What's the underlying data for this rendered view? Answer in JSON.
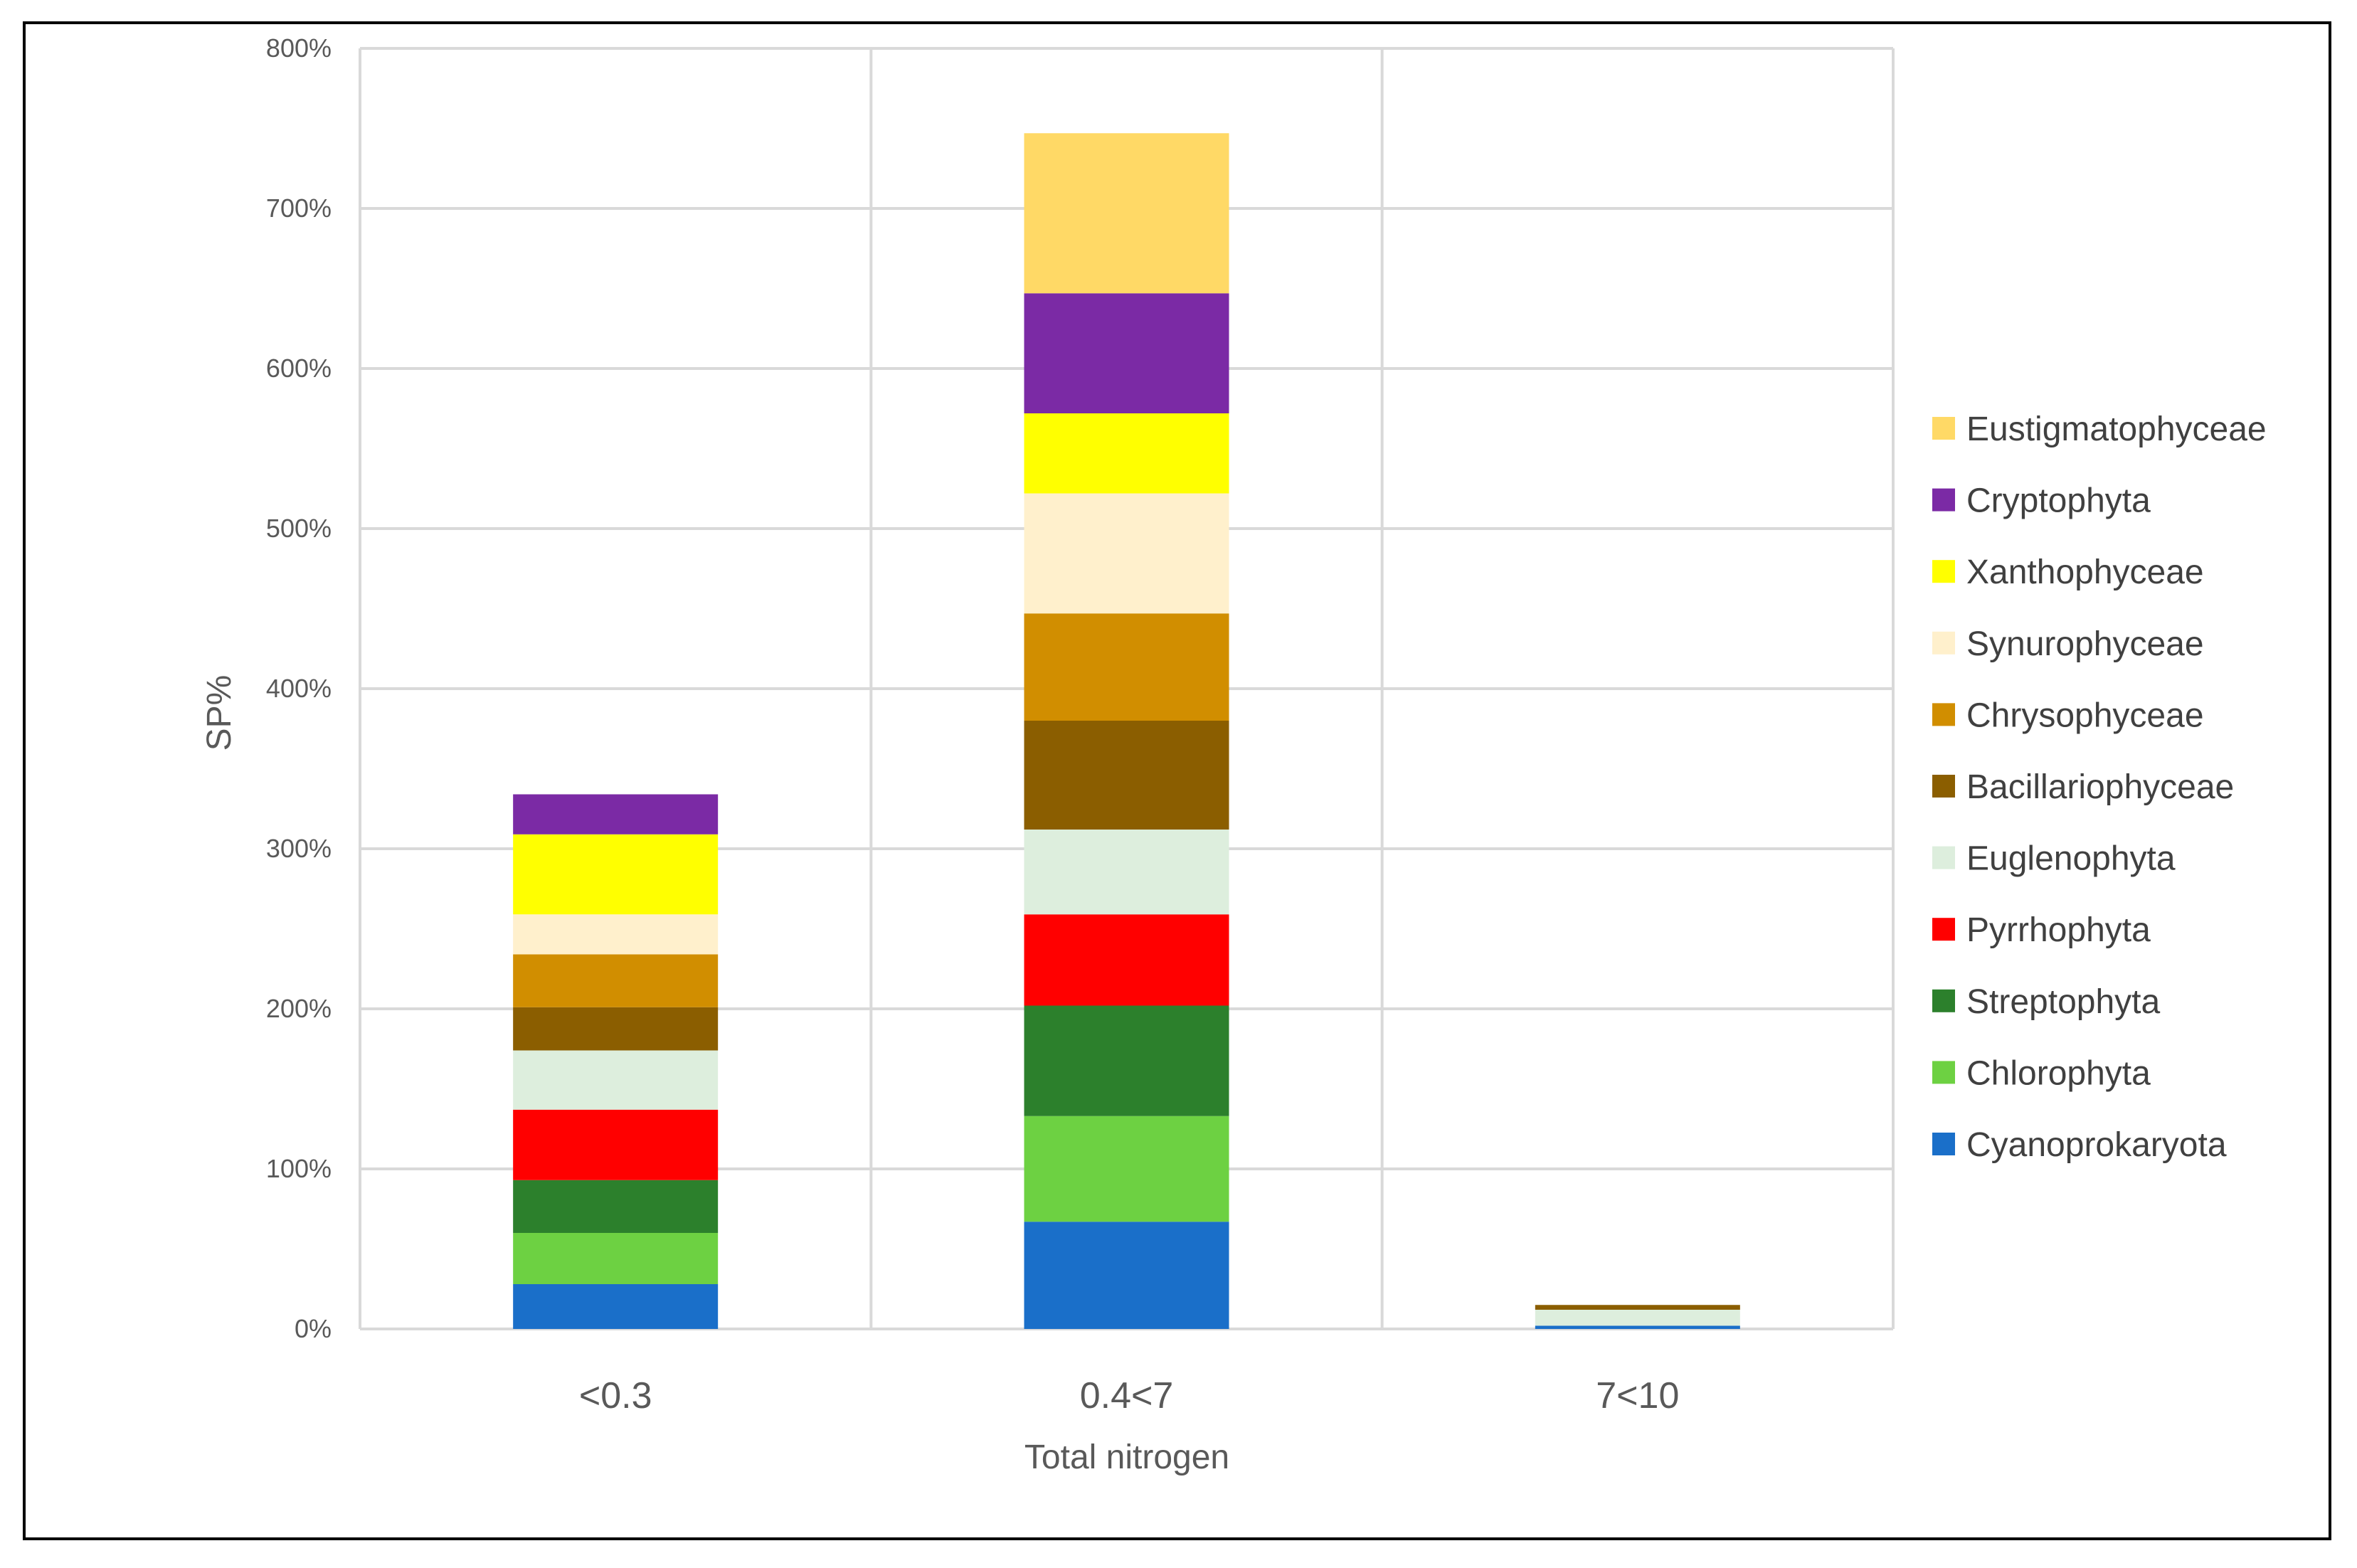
{
  "chart_data": {
    "type": "bar",
    "stacked": true,
    "title": "",
    "xlabel": "Total nitrogen",
    "ylabel": "SP%",
    "ylim": [
      0,
      800
    ],
    "y_ticks": [
      0,
      100,
      200,
      300,
      400,
      500,
      600,
      700,
      800
    ],
    "y_tick_labels": [
      "0%",
      "100%",
      "200%",
      "300%",
      "400%",
      "500%",
      "600%",
      "700%",
      "800%"
    ],
    "grid": true,
    "legend_position": "right",
    "categories": [
      "<0.3",
      "0.4<7",
      "7<10"
    ],
    "series": [
      {
        "name": "Cyanoprokaryota",
        "color": "#1a6fc9",
        "values": [
          28,
          67,
          2
        ]
      },
      {
        "name": "Chlorophyta",
        "color": "#6dd142",
        "values": [
          32,
          66,
          0
        ]
      },
      {
        "name": "Streptophyta",
        "color": "#2c802c",
        "values": [
          33,
          69,
          0
        ]
      },
      {
        "name": "Pyrrhophyta",
        "color": "#ff0000",
        "values": [
          44,
          57,
          0
        ]
      },
      {
        "name": "Euglenophyta",
        "color": "#ddeedd",
        "values": [
          37,
          53,
          10
        ]
      },
      {
        "name": "Bacillariophyceae",
        "color": "#8b5e00",
        "values": [
          27,
          68,
          3
        ]
      },
      {
        "name": "Chrysophyceae",
        "color": "#d18e00",
        "values": [
          33,
          67,
          0
        ]
      },
      {
        "name": "Synurophyceae",
        "color": "#fff0cc",
        "values": [
          25,
          75,
          0
        ]
      },
      {
        "name": "Xanthophyceae",
        "color": "#ffff00",
        "values": [
          50,
          50,
          0
        ]
      },
      {
        "name": "Cryptophyta",
        "color": "#7b2aa5",
        "values": [
          25,
          75,
          0
        ]
      },
      {
        "name": "Eustigmatophyceae",
        "color": "#ffd966",
        "values": [
          0,
          100,
          0
        ]
      }
    ]
  }
}
